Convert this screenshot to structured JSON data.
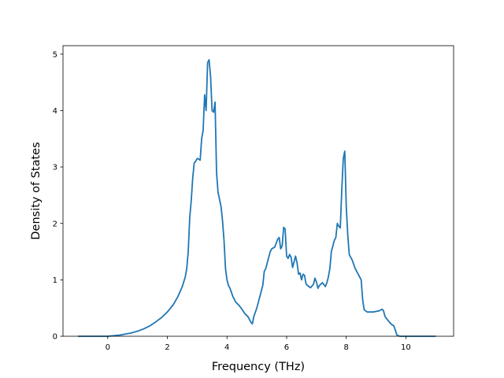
{
  "chart_data": {
    "type": "line",
    "title": "",
    "xlabel": "Frequency (THz)",
    "ylabel": "Density of States",
    "xlim": [
      -1.5,
      11.6
    ],
    "ylim": [
      0,
      5.15
    ],
    "xticks": [
      0,
      2,
      4,
      6,
      8,
      10
    ],
    "yticks": [
      0,
      1,
      2,
      3,
      4,
      5
    ],
    "grid": false,
    "series": [
      {
        "color": "#1f77b4",
        "points": [
          [
            -1.0,
            0.0
          ],
          [
            -0.5,
            0.0
          ],
          [
            0.0,
            0.0
          ],
          [
            0.2,
            0.01
          ],
          [
            0.4,
            0.02
          ],
          [
            0.6,
            0.04
          ],
          [
            0.8,
            0.06
          ],
          [
            1.0,
            0.09
          ],
          [
            1.2,
            0.13
          ],
          [
            1.4,
            0.18
          ],
          [
            1.6,
            0.25
          ],
          [
            1.8,
            0.33
          ],
          [
            2.0,
            0.43
          ],
          [
            2.2,
            0.56
          ],
          [
            2.35,
            0.7
          ],
          [
            2.5,
            0.88
          ],
          [
            2.6,
            1.05
          ],
          [
            2.65,
            1.2
          ],
          [
            2.7,
            1.5
          ],
          [
            2.75,
            2.1
          ],
          [
            2.8,
            2.4
          ],
          [
            2.85,
            2.8
          ],
          [
            2.9,
            3.07
          ],
          [
            2.95,
            3.1
          ],
          [
            3.0,
            3.15
          ],
          [
            3.05,
            3.14
          ],
          [
            3.1,
            3.12
          ],
          [
            3.15,
            3.5
          ],
          [
            3.2,
            3.65
          ],
          [
            3.25,
            4.28
          ],
          [
            3.3,
            4.0
          ],
          [
            3.35,
            4.85
          ],
          [
            3.4,
            4.9
          ],
          [
            3.45,
            4.6
          ],
          [
            3.5,
            4.0
          ],
          [
            3.55,
            3.97
          ],
          [
            3.6,
            4.15
          ],
          [
            3.65,
            2.9
          ],
          [
            3.7,
            2.55
          ],
          [
            3.8,
            2.3
          ],
          [
            3.85,
            2.05
          ],
          [
            3.9,
            1.7
          ],
          [
            3.95,
            1.2
          ],
          [
            4.0,
            1.0
          ],
          [
            4.05,
            0.9
          ],
          [
            4.1,
            0.85
          ],
          [
            4.2,
            0.7
          ],
          [
            4.3,
            0.6
          ],
          [
            4.4,
            0.55
          ],
          [
            4.5,
            0.48
          ],
          [
            4.6,
            0.4
          ],
          [
            4.7,
            0.35
          ],
          [
            4.8,
            0.25
          ],
          [
            4.85,
            0.22
          ],
          [
            4.9,
            0.35
          ],
          [
            5.0,
            0.5
          ],
          [
            5.1,
            0.7
          ],
          [
            5.2,
            0.9
          ],
          [
            5.25,
            1.15
          ],
          [
            5.3,
            1.2
          ],
          [
            5.4,
            1.4
          ],
          [
            5.45,
            1.5
          ],
          [
            5.5,
            1.55
          ],
          [
            5.6,
            1.58
          ],
          [
            5.65,
            1.65
          ],
          [
            5.7,
            1.72
          ],
          [
            5.75,
            1.75
          ],
          [
            5.8,
            1.55
          ],
          [
            5.85,
            1.6
          ],
          [
            5.9,
            1.93
          ],
          [
            5.95,
            1.9
          ],
          [
            6.0,
            1.42
          ],
          [
            6.05,
            1.38
          ],
          [
            6.1,
            1.45
          ],
          [
            6.15,
            1.4
          ],
          [
            6.2,
            1.22
          ],
          [
            6.25,
            1.32
          ],
          [
            6.3,
            1.42
          ],
          [
            6.35,
            1.3
          ],
          [
            6.4,
            1.1
          ],
          [
            6.45,
            1.12
          ],
          [
            6.5,
            1.0
          ],
          [
            6.55,
            1.1
          ],
          [
            6.6,
            1.08
          ],
          [
            6.65,
            0.93
          ],
          [
            6.7,
            0.9
          ],
          [
            6.8,
            0.86
          ],
          [
            6.9,
            0.92
          ],
          [
            6.95,
            1.03
          ],
          [
            7.0,
            0.96
          ],
          [
            7.05,
            0.85
          ],
          [
            7.1,
            0.9
          ],
          [
            7.2,
            0.95
          ],
          [
            7.3,
            0.88
          ],
          [
            7.35,
            0.95
          ],
          [
            7.4,
            1.05
          ],
          [
            7.45,
            1.2
          ],
          [
            7.5,
            1.5
          ],
          [
            7.55,
            1.6
          ],
          [
            7.6,
            1.7
          ],
          [
            7.65,
            1.75
          ],
          [
            7.7,
            2.0
          ],
          [
            7.75,
            1.95
          ],
          [
            7.8,
            1.92
          ],
          [
            7.85,
            2.6
          ],
          [
            7.9,
            3.15
          ],
          [
            7.95,
            3.28
          ],
          [
            8.0,
            2.3
          ],
          [
            8.05,
            1.8
          ],
          [
            8.1,
            1.45
          ],
          [
            8.2,
            1.35
          ],
          [
            8.3,
            1.2
          ],
          [
            8.4,
            1.1
          ],
          [
            8.5,
            1.0
          ],
          [
            8.55,
            0.65
          ],
          [
            8.6,
            0.47
          ],
          [
            8.7,
            0.43
          ],
          [
            8.9,
            0.43
          ],
          [
            9.1,
            0.45
          ],
          [
            9.2,
            0.48
          ],
          [
            9.25,
            0.45
          ],
          [
            9.3,
            0.35
          ],
          [
            9.4,
            0.28
          ],
          [
            9.5,
            0.22
          ],
          [
            9.6,
            0.18
          ],
          [
            9.65,
            0.1
          ],
          [
            9.7,
            0.02
          ],
          [
            9.8,
            0.0
          ],
          [
            10.2,
            0.0
          ],
          [
            10.6,
            0.0
          ],
          [
            11.0,
            0.0
          ]
        ]
      }
    ]
  }
}
